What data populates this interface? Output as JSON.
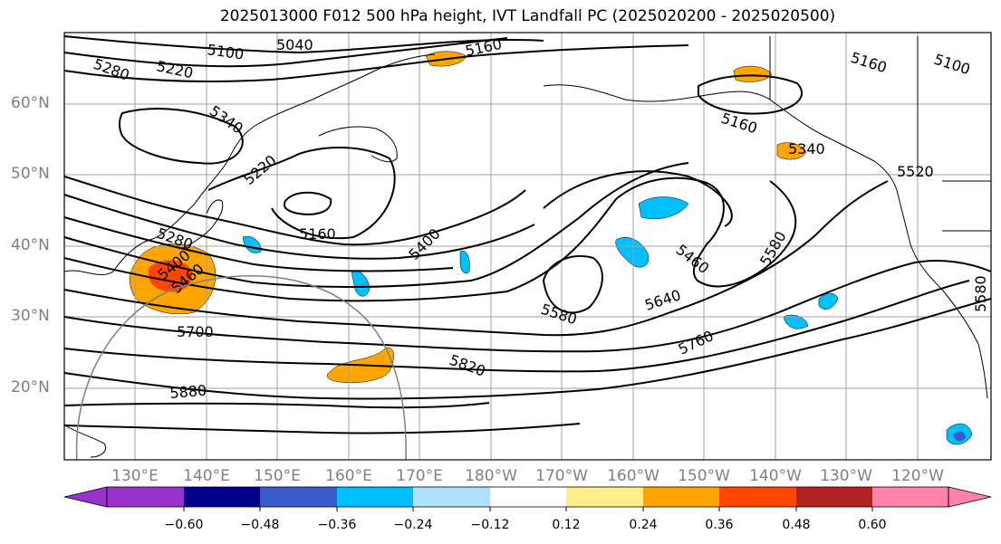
{
  "title": "2025013000 F012 500 hPa height, IVT Landfall PC (2025020200 - 2025020500)",
  "lat_labels": [
    "60°N",
    "50°N",
    "40°N",
    "30°N",
    "20°N"
  ],
  "lon_labels": [
    "130°E",
    "140°E",
    "150°E",
    "160°E",
    "170°E",
    "180°W",
    "170°W",
    "160°W",
    "150°W",
    "140°W",
    "130°W",
    "120°W"
  ],
  "contour_labels": [
    "5100",
    "5040",
    "5160",
    "5280",
    "5220",
    "5340",
    "5160",
    "5340",
    "5160",
    "5100",
    "5220",
    "5160",
    "5520",
    "5400",
    "5280",
    "5460",
    "5580",
    "5400",
    "5460",
    "5640",
    "5580",
    "5700",
    "5760",
    "5820",
    "5880",
    "5580"
  ],
  "colorbar": {
    "ticks": [
      "−0.60",
      "−0.48",
      "−0.36",
      "−0.24",
      "−0.12",
      "0.12",
      "0.24",
      "0.36",
      "0.48",
      "0.60"
    ],
    "colors": [
      "#9932cc",
      "#00008b",
      "#3a5bcc",
      "#00bfff",
      "#b0e0ff",
      "#ffffff",
      "#ffec8b",
      "#ffa500",
      "#ff4500",
      "#b22222",
      "#ff82ab"
    ]
  },
  "colors": {
    "axis_label": "#808080",
    "contour": "#000000",
    "grid": "#a0a0a0",
    "circle": "#808080"
  }
}
